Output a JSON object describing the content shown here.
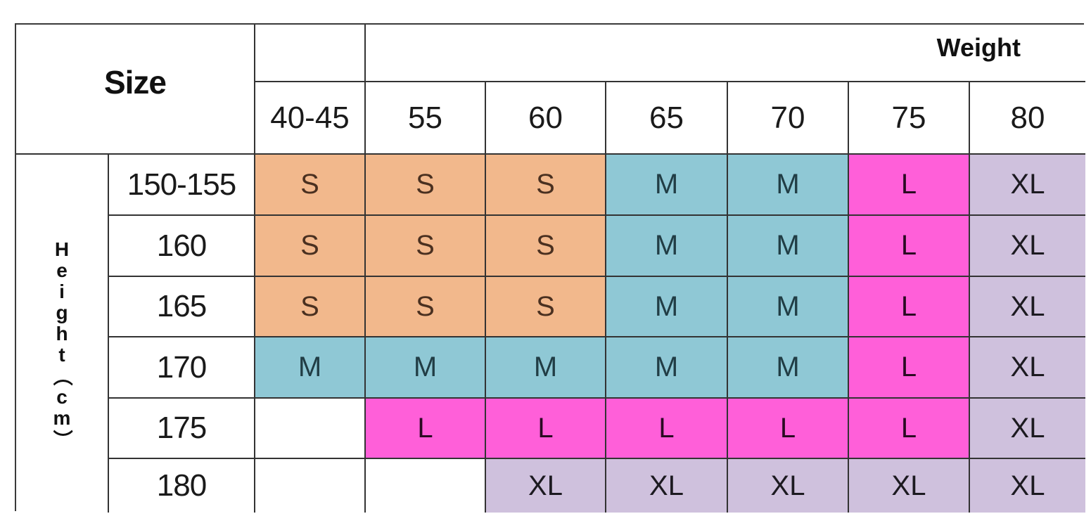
{
  "table": {
    "title": "Size",
    "weight_label": "Weight",
    "height_label_chars": [
      "H",
      "e",
      "i",
      "g",
      "h",
      "t",
      "（",
      "c",
      "m",
      "）"
    ],
    "weight_columns": [
      "40-45",
      "55",
      "60",
      "65",
      "70",
      "75",
      "80"
    ],
    "rows": [
      {
        "height": "150-155",
        "sizes": [
          "S",
          "S",
          "S",
          "M",
          "M",
          "L",
          "XL"
        ]
      },
      {
        "height": "160",
        "sizes": [
          "S",
          "S",
          "S",
          "M",
          "M",
          "L",
          "XL"
        ]
      },
      {
        "height": "165",
        "sizes": [
          "S",
          "S",
          "S",
          "M",
          "M",
          "L",
          "XL"
        ]
      },
      {
        "height": "170",
        "sizes": [
          "M",
          "M",
          "M",
          "M",
          "M",
          "L",
          "XL"
        ]
      },
      {
        "height": "175",
        "sizes": [
          "",
          "L",
          "L",
          "L",
          "L",
          "L",
          "XL"
        ]
      },
      {
        "height": "180",
        "sizes": [
          "",
          "",
          "XL",
          "XL",
          "XL",
          "XL",
          "XL"
        ]
      }
    ]
  },
  "colors": {
    "S": "#f2b88c",
    "M": "#8fc8d5",
    "L": "#ff5fd9",
    "XL": "#cfc1dd",
    "empty": "#ffffff",
    "border": "#333333"
  }
}
